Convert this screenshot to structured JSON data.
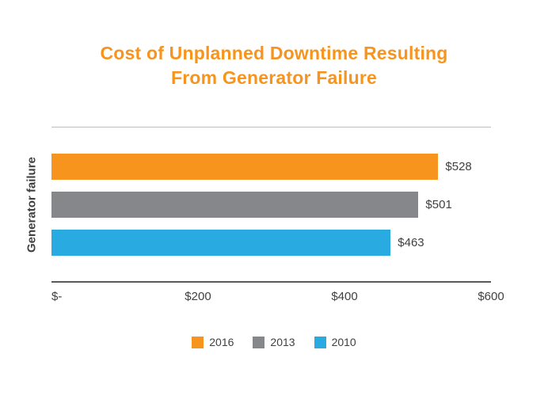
{
  "title": {
    "line1": "Cost of Unplanned Downtime Resulting",
    "line2": "From Generator Failure"
  },
  "colors": {
    "title_orange": "#F7941E",
    "bar_2016": "#F7941E",
    "bar_2013": "#85878A",
    "bar_2010": "#29ABE2",
    "axis_text": "#414042"
  },
  "chart_data": {
    "type": "bar",
    "orientation": "horizontal",
    "title": "Cost of Unplanned Downtime Resulting From Generator Failure",
    "ylabel": "Generator failure",
    "category": "Generator failure",
    "series": [
      {
        "name": "2016",
        "value": 528,
        "label": "$528",
        "color": "#F7941E"
      },
      {
        "name": "2013",
        "value": 501,
        "label": "$501",
        "color": "#85878A"
      },
      {
        "name": "2010",
        "value": 463,
        "label": "$463",
        "color": "#29ABE2"
      }
    ],
    "x_ticks": [
      "$-",
      "$200",
      "$400",
      "$600"
    ],
    "xlim": [
      0,
      600
    ],
    "grid": false,
    "legend_position": "bottom"
  }
}
